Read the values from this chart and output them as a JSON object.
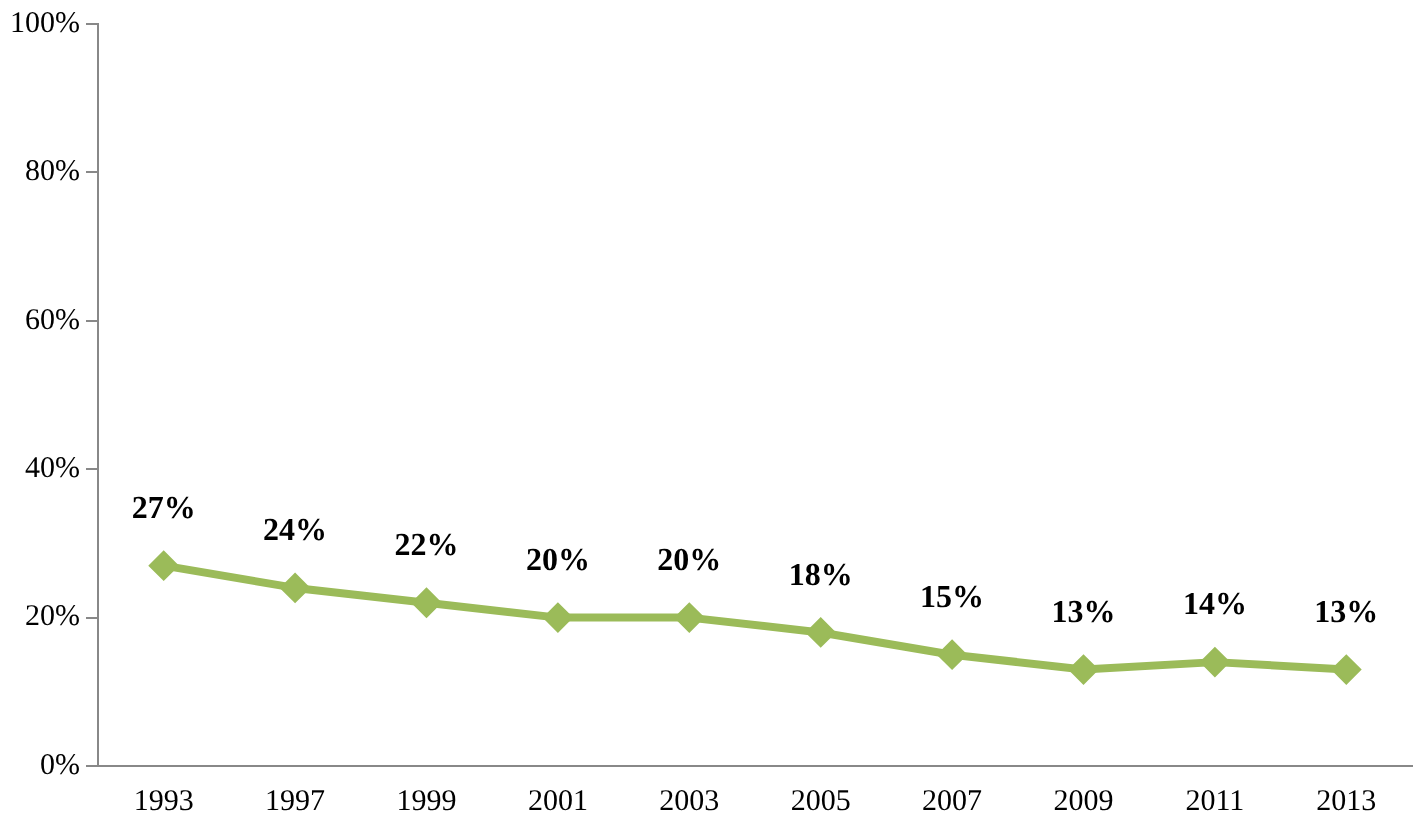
{
  "chart_data": {
    "type": "line",
    "categories": [
      "1993",
      "1997",
      "1999",
      "2001",
      "2003",
      "2005",
      "2007",
      "2009",
      "2011",
      "2013"
    ],
    "series": [
      {
        "color": "#9bbb59",
        "values": [
          27,
          24,
          22,
          20,
          20,
          18,
          15,
          13,
          14,
          13
        ]
      }
    ],
    "value_labels": [
      "27%",
      "24%",
      "22%",
      "20%",
      "20%",
      "18%",
      "15%",
      "13%",
      "14%",
      "13%"
    ],
    "ylim": [
      0,
      100
    ],
    "yticks": [
      {
        "value": 0,
        "label": "0%"
      },
      {
        "value": 20,
        "label": "20%"
      },
      {
        "value": 40,
        "label": "40%"
      },
      {
        "value": 60,
        "label": "60%"
      },
      {
        "value": 80,
        "label": "80%"
      },
      {
        "value": 100,
        "label": "100%"
      }
    ],
    "grid": false,
    "legend": false,
    "marker": "diamond",
    "line_style": "solid"
  }
}
